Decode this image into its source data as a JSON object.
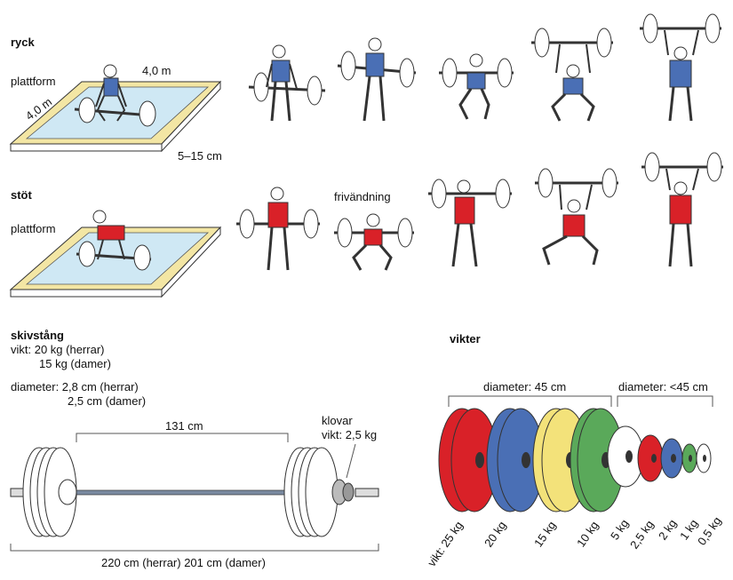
{
  "sections": {
    "ryck": {
      "title": "ryck",
      "platform_label": "plattform",
      "side_a": "4,0 m",
      "side_b": "4,0 m",
      "height": "5–15 cm"
    },
    "stot": {
      "title": "stöt",
      "platform_label": "plattform",
      "phase_label": "frivändning"
    },
    "skivstang": {
      "title": "skivstång",
      "weight_line1": "vikt: 20 kg (herrar)",
      "weight_line2": "15 kg (damer)",
      "diameter_line1": "diameter: 2,8 cm (herrar)",
      "diameter_line2": "2,5 cm (damer)",
      "inner_length": "131 cm",
      "total_length": "220 cm (herrar) 201 cm (damer)",
      "collar_title": "klovar",
      "collar_weight": "vikt: 2,5 kg"
    },
    "vikter": {
      "title": "vikter",
      "diameter_big": "diameter: 45 cm",
      "diameter_small": "diameter: <45 cm",
      "plates": [
        {
          "label": "vikt: 25 kg",
          "color": "#d92128"
        },
        {
          "label": "20 kg",
          "color": "#4a6fb5"
        },
        {
          "label": "15 kg",
          "color": "#f3e27a"
        },
        {
          "label": "10 kg",
          "color": "#5aa95a"
        },
        {
          "label": "5 kg",
          "color": "#ffffff"
        },
        {
          "label": "2,5 kg",
          "color": "#d92128"
        },
        {
          "label": "2 kg",
          "color": "#4a6fb5"
        },
        {
          "label": "1 kg",
          "color": "#5aa95a"
        },
        {
          "label": "0,5 kg",
          "color": "#ffffff"
        }
      ]
    }
  },
  "colors": {
    "platform_frame": "#f3e6a4",
    "platform_surface": "#cfe8f4",
    "ryck_suit": "#4a6fb5",
    "stot_suit": "#d92128"
  }
}
